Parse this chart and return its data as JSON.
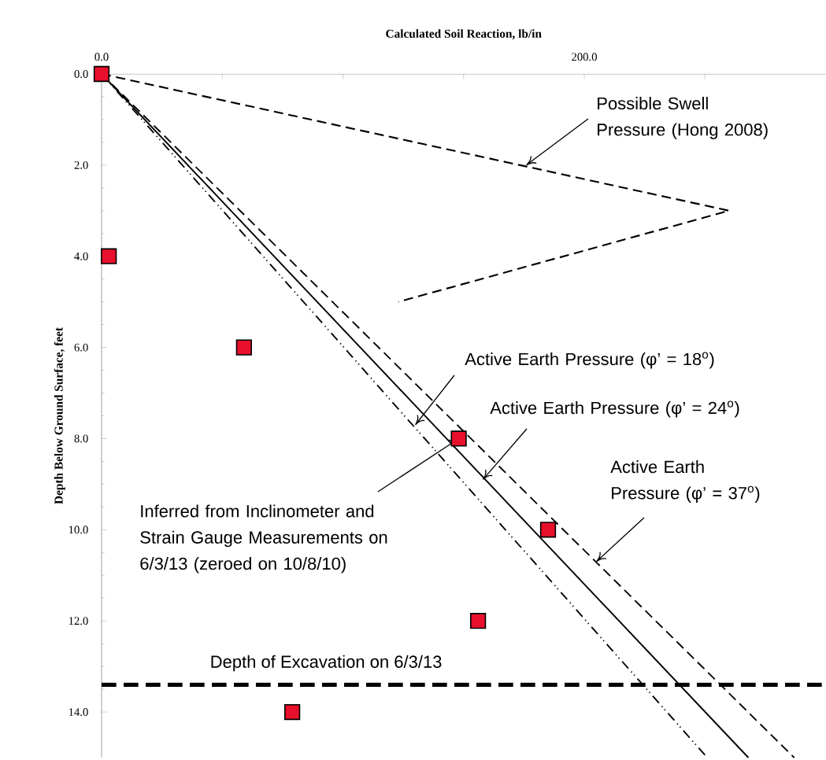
{
  "chart_data": {
    "type": "scatter",
    "xlabel": "Calculated Soil Reaction, lb/in",
    "ylabel": "Depth Below Ground Surface, feet",
    "x": [
      0,
      3,
      59,
      148,
      185,
      156,
      79
    ],
    "series": [
      {
        "color": "#e8102c",
        "marker": "square",
        "values": [
          0,
          4,
          6,
          8,
          10,
          12,
          14
        ]
      },
      {
        "type": "line",
        "color": "#000000",
        "line_style": "dashed",
        "x": [
          0,
          260,
          123
        ],
        "values": [
          0,
          3,
          5
        ]
      },
      {
        "type": "line",
        "color": "#000000",
        "line_style": "dashdotted",
        "x": [
          0,
          251
        ],
        "values": [
          0,
          15
        ]
      },
      {
        "type": "line",
        "color": "#000000",
        "line_style": "solid",
        "x": [
          0,
          268
        ],
        "values": [
          0,
          15
        ]
      },
      {
        "type": "line",
        "color": "#000000",
        "line_style": "dashed",
        "x": [
          0,
          287
        ],
        "values": [
          0,
          15
        ]
      }
    ],
    "xlim": [
      0,
      300
    ],
    "xticks": [
      {
        "value": 0,
        "label": "0.0"
      },
      {
        "value": 50,
        "label": null
      },
      {
        "value": 100,
        "label": null
      },
      {
        "value": 150,
        "label": null
      },
      {
        "value": 200,
        "label": "200.0"
      },
      {
        "value": 250,
        "label": null
      }
    ],
    "ylim": [
      15,
      0
    ],
    "yticks": [
      {
        "value": 0,
        "label": "0.0"
      },
      {
        "value": 2,
        "label": "2.0"
      },
      {
        "value": 4,
        "label": "4.0"
      },
      {
        "value": 6,
        "label": "6.0"
      },
      {
        "value": 8,
        "label": "8.0"
      },
      {
        "value": 10,
        "label": "10.0"
      },
      {
        "value": 12,
        "label": "12.0"
      },
      {
        "value": 14,
        "label": "14.0"
      }
    ],
    "ref_lines": [
      {
        "axis": "y",
        "value": 13.4,
        "label": "Depth of Excavation on 6/3/13",
        "color": "#000000",
        "line_style": "dashed"
      }
    ],
    "annotations": [
      {
        "text": "Possible Swell Pressure (Hong 2008)",
        "x": 176,
        "y": 2.0
      },
      {
        "text": "Active Earth Pressure (φ’ = 18$^{o}$)",
        "x": 130,
        "y": 7.7
      },
      {
        "text": "Active Earth Pressure (φ’ = 24$^{o}$)",
        "x": 158,
        "y": 8.9
      },
      {
        "text": "Active Earth Pressure (φ’ = 37$^{o}$)",
        "x": 205,
        "y": 10.7
      },
      {
        "text": "Inferred from Inclinometer and Strain Gauge Measurements on 6/3/13 (zeroed on 10/8/10)",
        "x": 148,
        "y": 8
      }
    ]
  }
}
